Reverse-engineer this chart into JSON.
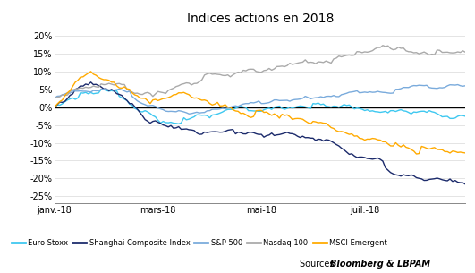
{
  "title": "Indices actions en 2018",
  "source_prefix": "Sources : ",
  "source_bold": "Bloomberg & LBPAM",
  "x_ticks_labels": [
    "janv.-18",
    "mars-18",
    "mai-18",
    "juil.-18"
  ],
  "x_ticks_pos": [
    0,
    40,
    80,
    120
  ],
  "ylim": [
    -0.27,
    0.22
  ],
  "yticks": [
    -0.25,
    -0.2,
    -0.15,
    -0.1,
    -0.05,
    0.0,
    0.05,
    0.1,
    0.15,
    0.2
  ],
  "ytick_labels": [
    "-25%",
    "-20%",
    "-15%",
    "-10%",
    "-5%",
    "0%",
    "5%",
    "10%",
    "15%",
    "20%"
  ],
  "colors": {
    "euro_stoxx": "#3EC8F0",
    "shanghai": "#1B2A6B",
    "sp500": "#7AABDC",
    "nasdaq": "#AAAAAA",
    "msci": "#FFAA00"
  },
  "legend_labels": [
    "Euro Stoxx",
    "Shanghai Composite Index",
    "S&P 500",
    "Nasdaq 100",
    "MSCI Emergent"
  ],
  "n_points": 160,
  "background": "#FFFFFF"
}
